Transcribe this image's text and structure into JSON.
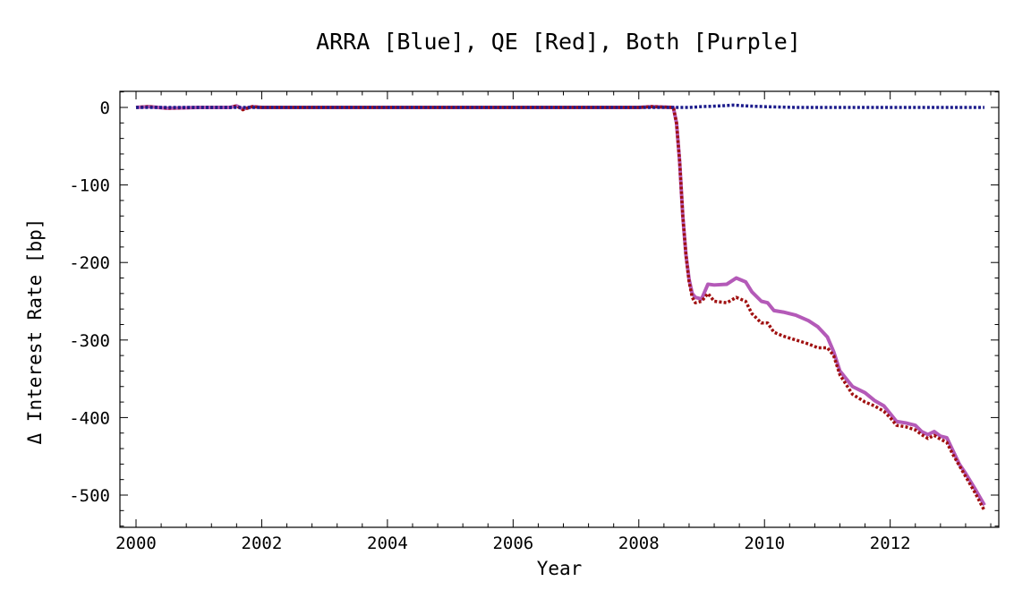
{
  "chart_data": {
    "type": "line",
    "title": "ARRA [Blue], QE [Red], Both [Purple]",
    "xlabel": "Year",
    "ylabel": "Δ Interest Rate [bp]",
    "xlim": [
      2000,
      2013.6
    ],
    "ylim": [
      -543,
      25
    ],
    "grid": false,
    "xticks": [
      2000,
      2002,
      2004,
      2006,
      2008,
      2010,
      2012
    ],
    "yticks": [
      0,
      -100,
      -200,
      -300,
      -400,
      -500
    ],
    "xtick_labels": [
      "2000",
      "2002",
      "2004",
      "2006",
      "2008",
      "2010",
      "2012"
    ],
    "ytick_labels": [
      "0",
      "-100",
      "-200",
      "-300",
      "-400",
      "-500"
    ],
    "series": [
      {
        "name": "Both",
        "color": "#b45ab8",
        "style": "solid",
        "x": [
          2000,
          2000.2,
          2000.5,
          2001,
          2001.5,
          2001.6,
          2001.7,
          2001.85,
          2002,
          2003,
          2004,
          2005,
          2006,
          2007,
          2008,
          2008.2,
          2008.55,
          2008.6,
          2008.65,
          2008.7,
          2008.75,
          2008.8,
          2008.85,
          2008.9,
          2009.0,
          2009.1,
          2009.2,
          2009.4,
          2009.55,
          2009.7,
          2009.8,
          2009.95,
          2010.05,
          2010.15,
          2010.3,
          2010.5,
          2010.7,
          2010.85,
          2011.0,
          2011.1,
          2011.2,
          2011.4,
          2011.6,
          2011.75,
          2011.9,
          2012.0,
          2012.1,
          2012.25,
          2012.4,
          2012.5,
          2012.6,
          2012.7,
          2012.8,
          2012.9,
          2013.0,
          2013.1,
          2013.2,
          2013.35,
          2013.5
        ],
        "y": [
          0,
          1,
          -1,
          0,
          0,
          2,
          -2,
          1,
          0,
          0,
          0,
          0,
          0,
          0,
          0,
          1,
          0,
          -20,
          -70,
          -140,
          -190,
          -222,
          -240,
          -245,
          -247,
          -228,
          -229,
          -228,
          -220,
          -225,
          -238,
          -250,
          -252,
          -262,
          -264,
          -268,
          -275,
          -283,
          -296,
          -315,
          -340,
          -360,
          -368,
          -378,
          -385,
          -395,
          -405,
          -407,
          -410,
          -418,
          -422,
          -418,
          -424,
          -426,
          -443,
          -460,
          -472,
          -492,
          -513
        ]
      },
      {
        "name": "QE",
        "color": "#a01010",
        "style": "dotted",
        "x": [
          2000,
          2000.2,
          2000.5,
          2001,
          2001.5,
          2001.6,
          2001.7,
          2001.85,
          2002,
          2003,
          2004,
          2005,
          2006,
          2007,
          2008,
          2008.2,
          2008.55,
          2008.6,
          2008.65,
          2008.7,
          2008.75,
          2008.8,
          2008.85,
          2008.9,
          2009.0,
          2009.1,
          2009.2,
          2009.4,
          2009.55,
          2009.7,
          2009.8,
          2009.95,
          2010.05,
          2010.15,
          2010.3,
          2010.5,
          2010.7,
          2010.85,
          2011.0,
          2011.1,
          2011.2,
          2011.4,
          2011.6,
          2011.75,
          2011.9,
          2012.0,
          2012.1,
          2012.25,
          2012.4,
          2012.5,
          2012.6,
          2012.7,
          2012.8,
          2012.9,
          2013.0,
          2013.1,
          2013.2,
          2013.35,
          2013.5
        ],
        "y": [
          0,
          1,
          -1,
          0,
          0,
          2,
          -3,
          1,
          0,
          0,
          0,
          0,
          0,
          0,
          0,
          1,
          0,
          -20,
          -70,
          -140,
          -190,
          -225,
          -245,
          -252,
          -250,
          -240,
          -250,
          -252,
          -245,
          -250,
          -266,
          -278,
          -278,
          -290,
          -295,
          -300,
          -305,
          -310,
          -310,
          -320,
          -345,
          -370,
          -380,
          -385,
          -392,
          -400,
          -410,
          -412,
          -416,
          -422,
          -427,
          -423,
          -428,
          -432,
          -448,
          -462,
          -476,
          -497,
          -520
        ]
      },
      {
        "name": "ARRA",
        "color": "#1c1c8c",
        "style": "dotted",
        "x": [
          2000,
          2002,
          2004,
          2006,
          2008,
          2008.55,
          2008.8,
          2009.0,
          2009.3,
          2009.5,
          2009.7,
          2010.0,
          2010.5,
          2011.0,
          2011.5,
          2012.0,
          2012.5,
          2013.0,
          2013.5
        ],
        "y": [
          0,
          0,
          0,
          0,
          0,
          0,
          0,
          1,
          2,
          3,
          2,
          1,
          0,
          0,
          0,
          0,
          0,
          0,
          0
        ]
      }
    ]
  }
}
